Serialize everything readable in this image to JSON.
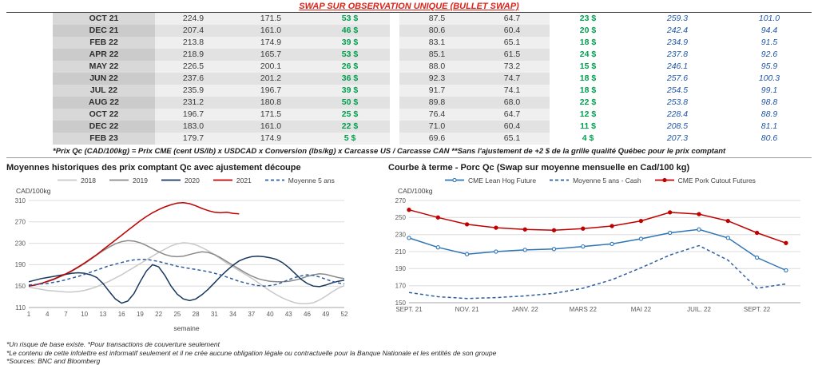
{
  "colors": {
    "title_red": "#de2218",
    "gain_green": "#00a14f",
    "futures_blue": "#2057a7"
  },
  "header": {
    "title": "SWAP SUR OBSERVATION UNIQUE (BULLET SWAP)"
  },
  "swap_table": {
    "rows": [
      [
        "OCT 21",
        "224.9",
        "171.5",
        "53 $",
        "87.5",
        "64.7",
        "23 $",
        "259.3",
        "101.0"
      ],
      [
        "DEC 21",
        "207.4",
        "161.0",
        "46 $",
        "80.6",
        "60.4",
        "20 $",
        "242.4",
        "94.4"
      ],
      [
        "FEB 22",
        "213.8",
        "174.9",
        "39 $",
        "83.1",
        "65.1",
        "18 $",
        "234.9",
        "91.5"
      ],
      [
        "APR 22",
        "218.9",
        "165.7",
        "53 $",
        "85.1",
        "61.5",
        "24 $",
        "237.8",
        "92.6"
      ],
      [
        "MAY 22",
        "226.5",
        "200.1",
        "26 $",
        "88.0",
        "73.2",
        "15 $",
        "246.1",
        "95.9"
      ],
      [
        "JUN 22",
        "237.6",
        "201.2",
        "36 $",
        "92.3",
        "74.7",
        "18 $",
        "257.6",
        "100.3"
      ],
      [
        "JUL 22",
        "235.9",
        "196.7",
        "39 $",
        "91.7",
        "74.1",
        "18 $",
        "254.5",
        "99.1"
      ],
      [
        "AUG 22",
        "231.2",
        "180.8",
        "50 $",
        "89.8",
        "68.0",
        "22 $",
        "253.8",
        "98.8"
      ],
      [
        "OCT 22",
        "196.7",
        "171.5",
        "25 $",
        "76.4",
        "64.7",
        "12 $",
        "228.4",
        "88.9"
      ],
      [
        "DEC 22",
        "183.0",
        "161.0",
        "22 $",
        "71.0",
        "60.4",
        "11 $",
        "208.5",
        "81.1"
      ],
      [
        "FEB 23",
        "179.7",
        "174.9",
        "5 $",
        "69.6",
        "65.1",
        "4 $",
        "207.3",
        "80.6"
      ]
    ]
  },
  "table_footnote": "*Prix Qc (CAD/100kg) = Prix CME (cent US/lb) x USDCAD x Conversion (lbs/kg) x Carcasse US / Carcasse CAN **Sans l'ajustement de +2 $ de la grille qualité Québec pour le prix comptant",
  "chart_data": [
    {
      "type": "line",
      "title": "Moyennes historiques des prix comptant Qc avec ajustement découpe",
      "ylabel": "CAD/100kg",
      "xlabel": "semaine",
      "ylim": [
        110,
        310
      ],
      "yticks": [
        110,
        150,
        190,
        230,
        270,
        310
      ],
      "xlim": [
        1,
        52
      ],
      "xtick_values": [
        1,
        4,
        7,
        10,
        13,
        16,
        19,
        22,
        25,
        28,
        31,
        34,
        37,
        40,
        43,
        46,
        49,
        52
      ],
      "xtick_labels": [
        "1",
        "4",
        "7",
        "10",
        "13",
        "16",
        "19",
        "22",
        "25",
        "28",
        "31",
        "34",
        "37",
        "40",
        "43",
        "46",
        "49",
        "52"
      ],
      "grid": "horizontal",
      "legend_position": "top",
      "series": [
        {
          "name": "2018",
          "color": "#c8c8c8",
          "x_start": 1,
          "values": [
            148,
            146,
            144,
            142,
            141,
            140,
            139,
            139,
            140,
            142,
            145,
            149,
            154,
            159,
            165,
            171,
            178,
            185,
            192,
            199,
            206,
            213,
            219,
            225,
            229,
            231,
            230,
            227,
            222,
            216,
            209,
            201,
            193,
            186,
            179,
            172,
            165,
            157,
            149,
            141,
            134,
            128,
            123,
            119,
            117,
            117,
            119,
            124,
            131,
            139,
            146,
            151
          ]
        },
        {
          "name": "2019",
          "color": "#8a8a8a",
          "x_start": 1,
          "values": [
            150,
            152,
            155,
            158,
            162,
            167,
            172,
            178,
            185,
            192,
            200,
            208,
            216,
            223,
            229,
            233,
            235,
            234,
            231,
            226,
            220,
            214,
            209,
            206,
            205,
            206,
            209,
            212,
            214,
            213,
            209,
            203,
            196,
            189,
            182,
            175,
            169,
            164,
            161,
            159,
            158,
            158,
            159,
            161,
            164,
            168,
            171,
            173,
            172,
            169,
            166,
            164
          ]
        },
        {
          "name": "2020",
          "color": "#17365d",
          "x_start": 1,
          "values": [
            158,
            161,
            164,
            166,
            168,
            170,
            172,
            174,
            175,
            174,
            171,
            166,
            155,
            140,
            126,
            118,
            122,
            136,
            158,
            178,
            190,
            186,
            170,
            150,
            135,
            126,
            123,
            126,
            134,
            144,
            156,
            168,
            179,
            189,
            197,
            202,
            205,
            206,
            205,
            203,
            200,
            194,
            185,
            174,
            163,
            155,
            150,
            149,
            152,
            156,
            159,
            161
          ]
        },
        {
          "name": "2021",
          "color": "#c00000",
          "x_start": 1,
          "values": [
            150,
            152,
            155,
            159,
            163,
            168,
            173,
            179,
            186,
            193,
            201,
            209,
            218,
            227,
            236,
            245,
            254,
            263,
            272,
            280,
            287,
            293,
            298,
            302,
            305,
            306,
            304,
            300,
            295,
            291,
            288,
            287,
            288,
            286,
            285
          ]
        },
        {
          "name": "Moyenne 5 ans",
          "color": "#2e5d9e",
          "dash": "4 3",
          "x_start": 1,
          "values": [
            152,
            153,
            154,
            155,
            157,
            159,
            162,
            165,
            168,
            172,
            176,
            180,
            184,
            188,
            191,
            194,
            197,
            199,
            200,
            200,
            198,
            196,
            193,
            190,
            187,
            185,
            183,
            181,
            179,
            177,
            174,
            171,
            167,
            163,
            159,
            156,
            153,
            151,
            150,
            151,
            153,
            157,
            162,
            166,
            169,
            171,
            170,
            167,
            163,
            159,
            156,
            154
          ]
        }
      ]
    },
    {
      "type": "line",
      "title": "Courbe à terme - Porc Qc (Swap sur moyenne mensuelle en Cad/100 kg)",
      "ylabel": "CAD/100kg",
      "ylim": [
        150,
        270
      ],
      "yticks": [
        150,
        170,
        190,
        210,
        230,
        250,
        270
      ],
      "xlim": [
        0,
        13.5
      ],
      "xtick_values": [
        0,
        2,
        4,
        6,
        8,
        10,
        12
      ],
      "xtick_labels": [
        "SEPT. 21",
        "NOV. 21",
        "JANV. 22",
        "MARS 22",
        "MAI 22",
        "JUIL. 22",
        "SEPT. 22"
      ],
      "grid": "horizontal",
      "legend_position": "top",
      "series": [
        {
          "name": "CME Lean Hog Future",
          "color": "#2e75b6",
          "marker": "open",
          "x_start": 0,
          "values": [
            226,
            215,
            207,
            210,
            212,
            213,
            216,
            219,
            225,
            232,
            236,
            226,
            203,
            188
          ]
        },
        {
          "name": "Moyenne 5 ans - Cash",
          "color": "#2e5d9e",
          "dash": "4 3",
          "x_start": 0,
          "values": [
            162,
            157,
            155,
            156,
            158,
            161,
            167,
            177,
            191,
            206,
            217,
            200,
            167,
            172
          ]
        },
        {
          "name": "CME Pork Cutout Futures",
          "color": "#c00000",
          "marker": "filled",
          "x_start": 0,
          "values": [
            259,
            250,
            242,
            238,
            236,
            235,
            237,
            240,
            246,
            256,
            254,
            246,
            232,
            220
          ]
        }
      ]
    }
  ],
  "footer": {
    "line1": "*Un risque de base existe. *Pour transactions de couverture seulement",
    "line2": "*Le contenu de cette infolettre est informatif seulement et il ne crée aucune obligation légale ou contractuelle pour la Banque Nationale et les entités de son groupe",
    "line3": "*Sources: BNC and Bloomberg"
  }
}
